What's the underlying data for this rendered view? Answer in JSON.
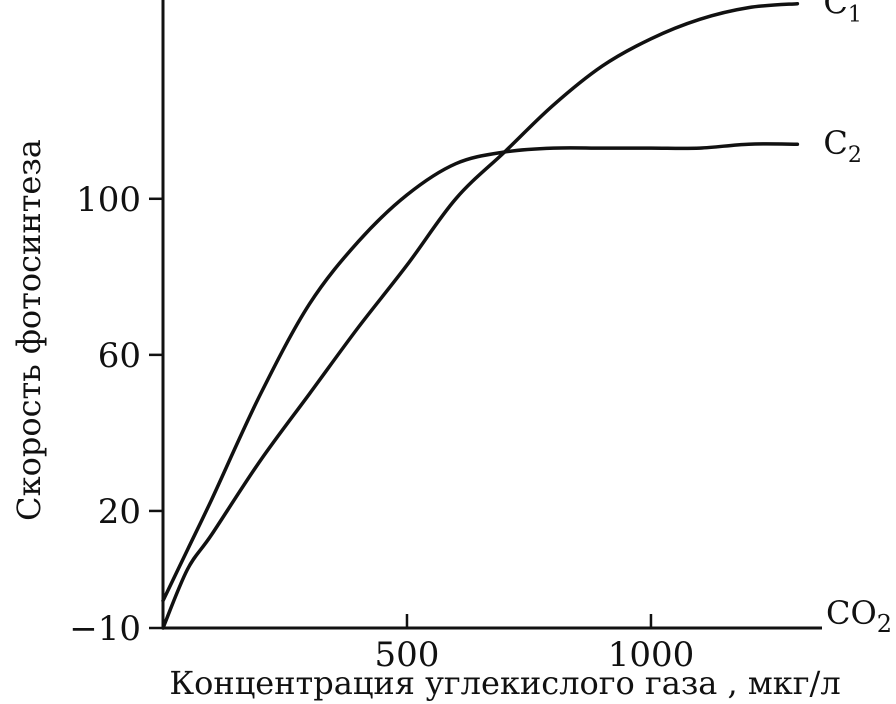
{
  "chart_data": {
    "type": "line",
    "title": "",
    "xlabel": "Концентрация углекислого газа , мкг/л",
    "ylabel": "Скорость фотосинтеза",
    "x_axis_end_label": "CO",
    "x_axis_end_sub": "2",
    "xlim": [
      0,
      1330
    ],
    "ylim": [
      -10,
      143
    ],
    "xticks": [
      500,
      1000
    ],
    "xtick_labels": [
      "500",
      "1000"
    ],
    "yticks": [
      -10,
      20,
      60,
      100
    ],
    "ytick_labels": [
      "−10",
      "20",
      "60",
      "100"
    ],
    "grid": false,
    "series": [
      {
        "name": "C",
        "sub": "1",
        "x": [
          0,
          50,
          100,
          200,
          300,
          400,
          500,
          600,
          700,
          800,
          900,
          1000,
          1100,
          1200,
          1300
        ],
        "y": [
          -10,
          5,
          14,
          33,
          50,
          67,
          83,
          100,
          112,
          124,
          134,
          141,
          146,
          149,
          150
        ]
      },
      {
        "name": "C",
        "sub": "2",
        "x": [
          0,
          50,
          100,
          200,
          300,
          400,
          500,
          600,
          700,
          800,
          900,
          1000,
          1100,
          1200,
          1300
        ],
        "y": [
          -3,
          10,
          23,
          50,
          73,
          89,
          101,
          109,
          112,
          113,
          113,
          113,
          113,
          114,
          114
        ]
      }
    ]
  }
}
